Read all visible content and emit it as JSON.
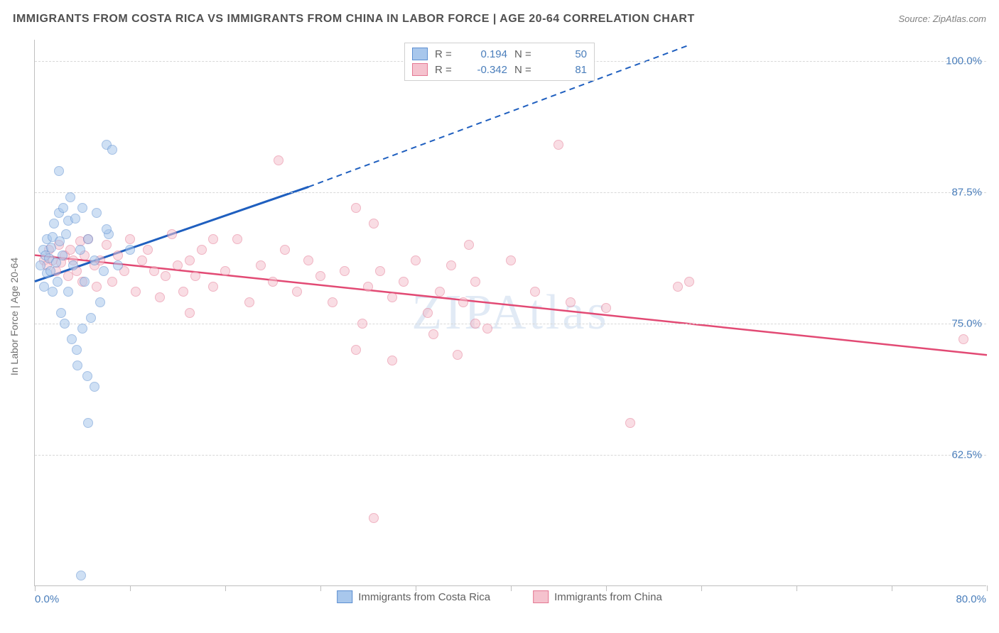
{
  "title": "IMMIGRANTS FROM COSTA RICA VS IMMIGRANTS FROM CHINA IN LABOR FORCE | AGE 20-64 CORRELATION CHART",
  "source": "Source: ZipAtlas.com",
  "watermark": "ZIPAtlas",
  "yaxis_title": "In Labor Force | Age 20-64",
  "chart": {
    "type": "scatter",
    "background_color": "#ffffff",
    "grid_color": "#d8d8d8",
    "border_color": "#bfbfbf",
    "label_color": "#4a7ebb",
    "label_fontsize": 15,
    "xlim": [
      0,
      80
    ],
    "ylim": [
      50,
      102
    ],
    "x_tick_positions": [
      0,
      8,
      16,
      24,
      32,
      40,
      48,
      56,
      64,
      72,
      80
    ],
    "x_tick_labels": {
      "0": "0.0%",
      "80": "80.0%"
    },
    "y_gridlines": [
      62.5,
      75.0,
      87.5,
      100.0
    ],
    "y_tick_labels": [
      "62.5%",
      "75.0%",
      "87.5%",
      "100.0%"
    ],
    "marker_radius": 7,
    "marker_opacity": 0.55
  },
  "series": {
    "costa_rica": {
      "label": "Immigrants from Costa Rica",
      "fill_color": "#a8c7ec",
      "stroke_color": "#5d8fd1",
      "line_color": "#1f5fbf",
      "R": "0.194",
      "N": "50",
      "trend": {
        "x1": 0,
        "y1": 79.0,
        "x2": 23,
        "y2": 88.0,
        "solid_end_x": 23,
        "dash_x2": 55,
        "dash_y2": 101.5
      },
      "points": [
        [
          0.5,
          80.5
        ],
        [
          0.7,
          82.0
        ],
        [
          0.8,
          78.5
        ],
        [
          0.9,
          81.5
        ],
        [
          1.0,
          83.0
        ],
        [
          1.0,
          79.8
        ],
        [
          1.2,
          81.2
        ],
        [
          1.3,
          80.0
        ],
        [
          1.4,
          82.2
        ],
        [
          1.5,
          83.2
        ],
        [
          1.5,
          78.0
        ],
        [
          1.6,
          84.5
        ],
        [
          1.8,
          80.8
        ],
        [
          1.9,
          79.0
        ],
        [
          2.0,
          89.5
        ],
        [
          2.0,
          85.5
        ],
        [
          2.1,
          82.8
        ],
        [
          2.2,
          76.0
        ],
        [
          2.3,
          81.5
        ],
        [
          2.4,
          86.0
        ],
        [
          2.5,
          75.0
        ],
        [
          2.6,
          83.5
        ],
        [
          2.8,
          78.0
        ],
        [
          2.8,
          84.8
        ],
        [
          3.0,
          87.0
        ],
        [
          3.1,
          73.5
        ],
        [
          3.2,
          80.5
        ],
        [
          3.4,
          85.0
        ],
        [
          3.5,
          72.5
        ],
        [
          3.6,
          71.0
        ],
        [
          3.8,
          82.0
        ],
        [
          4.0,
          86.0
        ],
        [
          4.0,
          74.5
        ],
        [
          4.2,
          79.0
        ],
        [
          4.4,
          70.0
        ],
        [
          4.5,
          83.0
        ],
        [
          4.7,
          75.5
        ],
        [
          5.0,
          81.0
        ],
        [
          5.2,
          85.5
        ],
        [
          5.5,
          77.0
        ],
        [
          5.8,
          80.0
        ],
        [
          6.0,
          92.0
        ],
        [
          6.2,
          83.5
        ],
        [
          6.5,
          91.5
        ],
        [
          7.0,
          80.5
        ],
        [
          8.0,
          82.0
        ],
        [
          4.5,
          65.5
        ],
        [
          3.9,
          51.0
        ],
        [
          5.0,
          69.0
        ],
        [
          6.0,
          84.0
        ]
      ]
    },
    "china": {
      "label": "Immigrants from China",
      "fill_color": "#f5c2ce",
      "stroke_color": "#e47893",
      "line_color": "#e24a74",
      "R": "-0.342",
      "N": "81",
      "trend": {
        "x1": 0,
        "y1": 81.5,
        "x2": 80,
        "y2": 72.0
      },
      "points": [
        [
          0.8,
          81.0
        ],
        [
          1.0,
          80.5
        ],
        [
          1.2,
          82.0
        ],
        [
          1.5,
          81.0
        ],
        [
          1.8,
          80.0
        ],
        [
          2.0,
          82.5
        ],
        [
          2.2,
          80.8
        ],
        [
          2.5,
          81.5
        ],
        [
          2.8,
          79.5
        ],
        [
          3.0,
          82.0
        ],
        [
          3.2,
          81.0
        ],
        [
          3.5,
          80.0
        ],
        [
          3.8,
          82.8
        ],
        [
          4.0,
          79.0
        ],
        [
          4.2,
          81.5
        ],
        [
          4.5,
          83.0
        ],
        [
          5.0,
          80.5
        ],
        [
          5.2,
          78.5
        ],
        [
          5.5,
          81.0
        ],
        [
          6.0,
          82.5
        ],
        [
          6.5,
          79.0
        ],
        [
          7.0,
          81.5
        ],
        [
          7.5,
          80.0
        ],
        [
          8.0,
          83.0
        ],
        [
          8.5,
          78.0
        ],
        [
          9.0,
          81.0
        ],
        [
          9.5,
          82.0
        ],
        [
          10.0,
          80.0
        ],
        [
          10.5,
          77.5
        ],
        [
          11.0,
          79.5
        ],
        [
          11.5,
          83.5
        ],
        [
          12.0,
          80.5
        ],
        [
          12.5,
          78.0
        ],
        [
          13.0,
          81.0
        ],
        [
          13.5,
          79.5
        ],
        [
          14.0,
          82.0
        ],
        [
          15.0,
          78.5
        ],
        [
          16.0,
          80.0
        ],
        [
          17.0,
          83.0
        ],
        [
          18.0,
          77.0
        ],
        [
          19.0,
          80.5
        ],
        [
          20.0,
          79.0
        ],
        [
          20.5,
          90.5
        ],
        [
          21.0,
          82.0
        ],
        [
          22.0,
          78.0
        ],
        [
          23.0,
          81.0
        ],
        [
          24.0,
          79.5
        ],
        [
          25.0,
          77.0
        ],
        [
          26.0,
          80.0
        ],
        [
          27.0,
          86.0
        ],
        [
          27.5,
          75.0
        ],
        [
          28.0,
          78.5
        ],
        [
          28.5,
          84.5
        ],
        [
          29.0,
          80.0
        ],
        [
          30.0,
          77.5
        ],
        [
          31.0,
          79.0
        ],
        [
          32.0,
          81.0
        ],
        [
          33.0,
          76.0
        ],
        [
          34.0,
          78.0
        ],
        [
          35.0,
          80.5
        ],
        [
          35.5,
          72.0
        ],
        [
          36.0,
          77.0
        ],
        [
          37.0,
          79.0
        ],
        [
          38.0,
          74.5
        ],
        [
          40.0,
          81.0
        ],
        [
          42.0,
          78.0
        ],
        [
          44.0,
          92.0
        ],
        [
          45.0,
          77.0
        ],
        [
          48.0,
          76.5
        ],
        [
          50.0,
          65.5
        ],
        [
          54.0,
          78.5
        ],
        [
          55.0,
          79.0
        ],
        [
          27.0,
          72.5
        ],
        [
          30.0,
          71.5
        ],
        [
          37.0,
          75.0
        ],
        [
          28.5,
          56.5
        ],
        [
          78.0,
          73.5
        ],
        [
          33.5,
          74.0
        ],
        [
          36.5,
          82.5
        ],
        [
          13.0,
          76.0
        ],
        [
          15.0,
          83.0
        ]
      ]
    }
  },
  "legend_top": {
    "r_label": "R =",
    "n_label": "N ="
  }
}
